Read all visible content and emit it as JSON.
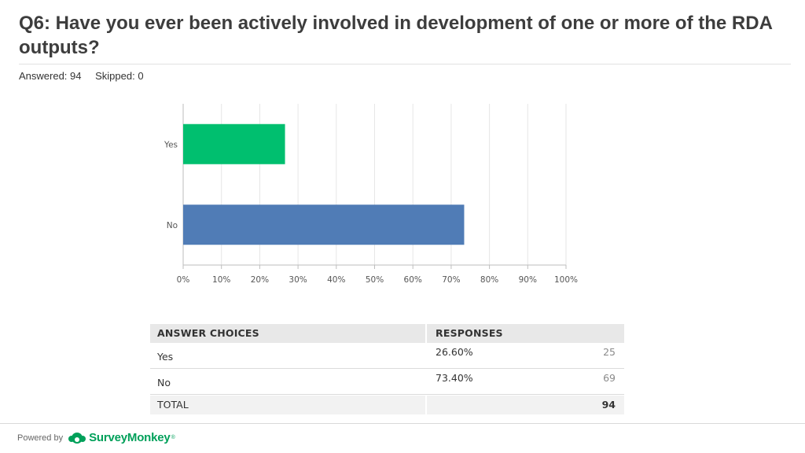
{
  "question": {
    "title": "Q6: Have you ever been actively involved in development of one or more of the RDA outputs?",
    "answered": "Answered: 94",
    "skipped": "Skipped: 0"
  },
  "chart_data": {
    "type": "bar",
    "orientation": "horizontal",
    "categories": [
      "Yes",
      "No"
    ],
    "values": [
      26.6,
      73.4
    ],
    "bar_colors": [
      "#00bf6f",
      "#507cb6"
    ],
    "xlim": [
      0,
      100
    ],
    "x_ticks": [
      "0%",
      "10%",
      "20%",
      "30%",
      "40%",
      "50%",
      "60%",
      "70%",
      "80%",
      "90%",
      "100%"
    ],
    "grid": true,
    "title": "",
    "xlabel": "",
    "ylabel": ""
  },
  "table": {
    "headers": [
      "ANSWER CHOICES",
      "RESPONSES"
    ],
    "rows": [
      {
        "choice": "Yes",
        "percent": "26.60%",
        "count": "25"
      },
      {
        "choice": "No",
        "percent": "73.40%",
        "count": "69"
      }
    ],
    "total_label": "TOTAL",
    "total_count": "94"
  },
  "footer": {
    "powered_by": "Powered by",
    "brand": "SurveyMonkey",
    "brand_color": "#00a05a"
  }
}
